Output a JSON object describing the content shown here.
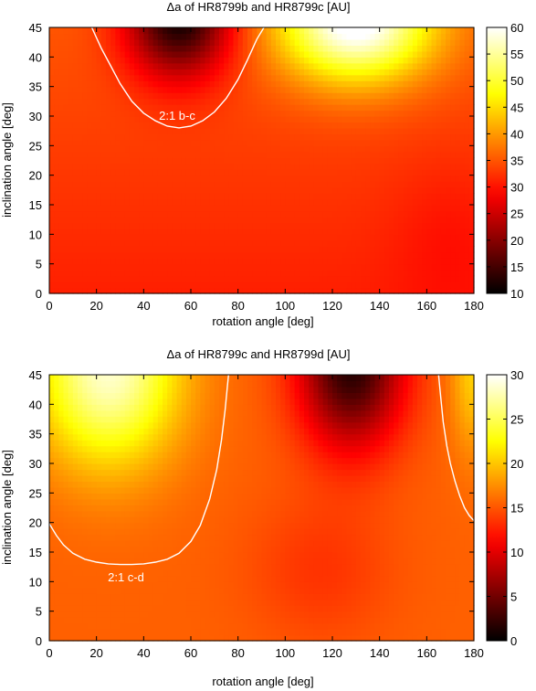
{
  "chart_data": [
    {
      "type": "heatmap",
      "title": "Δa of HR8799b and HR8799c [AU]",
      "xlabel": "rotation angle [deg]",
      "ylabel": "inclination angle [deg]",
      "xlim": [
        0,
        180
      ],
      "ylim": [
        0,
        45
      ],
      "xticks": [
        0,
        20,
        40,
        60,
        80,
        100,
        120,
        140,
        160,
        180
      ],
      "yticks": [
        0,
        5,
        10,
        15,
        20,
        25,
        30,
        35,
        40,
        45
      ],
      "colorbar": {
        "min": 10,
        "max": 60,
        "ticks": [
          10,
          15,
          20,
          25,
          30,
          35,
          40,
          45,
          50,
          55,
          60
        ]
      },
      "annotation": "2:1 b-c",
      "field": {
        "base": 31,
        "incl_gain": 4,
        "blobs": [
          {
            "x": 55,
            "y": 47,
            "sx": 22,
            "sy": 10,
            "amp": -24
          },
          {
            "x": 130,
            "y": 46,
            "sx": 32,
            "sy": 10,
            "amp": 27
          },
          {
            "x": 170,
            "y": 10,
            "sx": 25,
            "sy": 14,
            "amp": -2
          }
        ]
      },
      "contour": {
        "x": [
          18,
          22,
          26,
          30,
          35,
          40,
          45,
          50,
          55,
          60,
          65,
          70,
          75,
          80,
          84,
          88,
          91
        ],
        "y": [
          45,
          41.5,
          38.5,
          35.5,
          32.5,
          30.5,
          29.2,
          28.3,
          28.0,
          28.3,
          29.2,
          30.7,
          33.0,
          36.2,
          39.5,
          43,
          45
        ]
      }
    },
    {
      "type": "heatmap",
      "title": "Δa of HR8799c and HR8799d [AU]",
      "xlabel": "rotation angle [deg]",
      "ylabel": "inclination angle [deg]",
      "xlim": [
        0,
        180
      ],
      "ylim": [
        0,
        45
      ],
      "xticks": [
        0,
        20,
        40,
        60,
        80,
        100,
        120,
        140,
        160,
        180
      ],
      "yticks": [
        0,
        5,
        10,
        15,
        20,
        25,
        30,
        35,
        40,
        45
      ],
      "colorbar": {
        "min": 0,
        "max": 30,
        "ticks": [
          0,
          5,
          10,
          15,
          20,
          25,
          30
        ]
      },
      "annotation": "2:1 c-d",
      "field": {
        "base": 15.5,
        "incl_gain": 0,
        "blobs": [
          {
            "x": 25,
            "y": 46,
            "sx": 30,
            "sy": 16,
            "amp": 13
          },
          {
            "x": 128,
            "y": 47,
            "sx": 22,
            "sy": 14,
            "amp": -14
          },
          {
            "x": 180,
            "y": 46,
            "sx": 10,
            "sy": 14,
            "amp": 5
          },
          {
            "x": 115,
            "y": 12,
            "sx": 30,
            "sy": 12,
            "amp": -2
          }
        ]
      },
      "contour": {
        "x": [
          0,
          3,
          6,
          10,
          15,
          20,
          25,
          30,
          35,
          40,
          45,
          50,
          55,
          60,
          64,
          68,
          71,
          73,
          74.5,
          75.5,
          76
        ],
        "y": [
          19.8,
          17.8,
          16.2,
          14.8,
          13.8,
          13.3,
          13.0,
          12.9,
          12.9,
          13.0,
          13.3,
          13.8,
          14.8,
          16.8,
          19.5,
          24,
          29,
          34,
          39,
          43,
          45
        ]
      },
      "contour2": {
        "x": [
          165,
          166,
          167,
          168.5,
          170,
          172,
          174,
          176,
          178,
          180
        ],
        "y": [
          45,
          41,
          37,
          33,
          30,
          27,
          24.5,
          22.5,
          21.2,
          20.3
        ]
      }
    }
  ]
}
